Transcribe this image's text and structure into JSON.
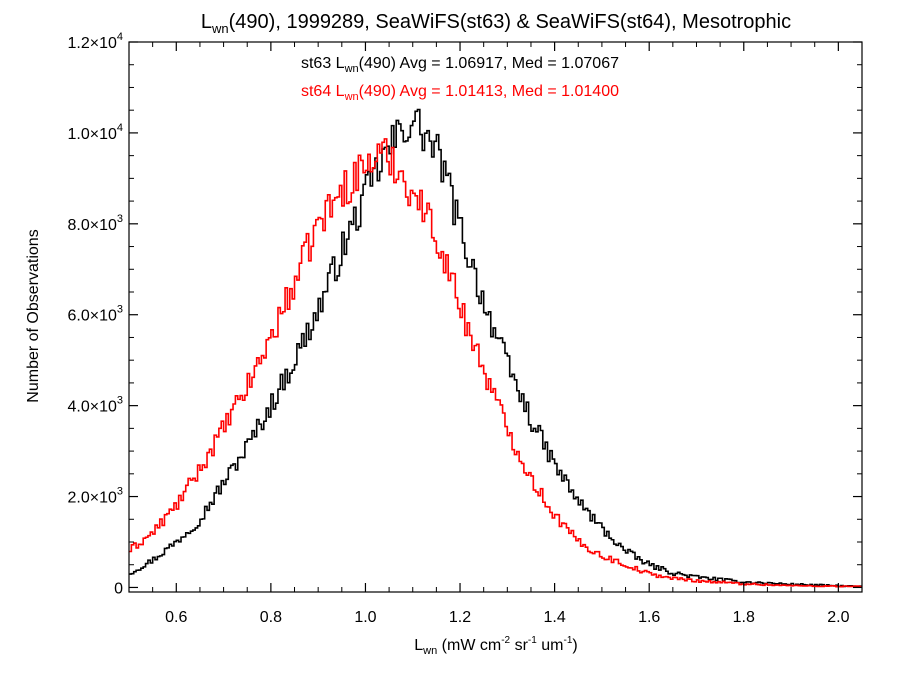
{
  "chart_data": {
    "type": "line",
    "step": true,
    "title": {
      "parts": [
        "L",
        "wn",
        "(490), 1999289, SeaWiFS(st63) & SeaWiFS(st64), Mesotrophic"
      ]
    },
    "xlabel": {
      "parts": [
        "L",
        "wn",
        " (mW cm",
        "-2",
        " sr",
        "-1",
        " um",
        "-1",
        ")"
      ]
    },
    "ylabel": "Number of Observations",
    "xlim": [
      0.5,
      2.05
    ],
    "ylim": [
      -100,
      12000
    ],
    "x_ticks": [
      0.6,
      0.8,
      1.0,
      1.2,
      1.4,
      1.6,
      1.8,
      2.0
    ],
    "x_tick_labels": [
      "0.6",
      "0.8",
      "1.0",
      "1.2",
      "1.4",
      "1.6",
      "1.8",
      "2.0"
    ],
    "y_ticks": [
      0,
      2000,
      4000,
      6000,
      8000,
      10000,
      12000
    ],
    "y_tick_labels": [
      {
        "mantissa": "0",
        "exp": ""
      },
      {
        "mantissa": "2.0×10",
        "exp": "3"
      },
      {
        "mantissa": "4.0×10",
        "exp": "3"
      },
      {
        "mantissa": "6.0×10",
        "exp": "3"
      },
      {
        "mantissa": "8.0×10",
        "exp": "3"
      },
      {
        "mantissa": "1.0×10",
        "exp": "4"
      },
      {
        "mantissa": "1.2×10",
        "exp": "4"
      }
    ],
    "grid": false,
    "annotations": [
      {
        "parts": [
          "st63 L",
          "wn",
          "(490) Avg = 1.06917, Med = 1.07067"
        ],
        "color": "#000000"
      },
      {
        "parts": [
          "st64 L",
          "wn",
          "(490) Avg = 1.01413, Med = 1.01400"
        ],
        "color": "#ff0000"
      }
    ],
    "series": [
      {
        "color": "#000000",
        "x": [
          0.5,
          0.55,
          0.6,
          0.65,
          0.7,
          0.75,
          0.8,
          0.85,
          0.9,
          0.95,
          1.0,
          1.03,
          1.06,
          1.08,
          1.1,
          1.13,
          1.16,
          1.2,
          1.25,
          1.3,
          1.35,
          1.4,
          1.45,
          1.5,
          1.55,
          1.6,
          1.65,
          1.7,
          1.8,
          1.9,
          2.05
        ],
        "y": [
          300,
          600,
          1000,
          1500,
          2300,
          3100,
          4000,
          5000,
          6100,
          7400,
          8600,
          9300,
          9800,
          10100,
          10300,
          9900,
          9400,
          7900,
          6300,
          4900,
          3700,
          2700,
          1900,
          1300,
          800,
          500,
          320,
          230,
          120,
          70,
          20
        ]
      },
      {
        "color": "#ff0000",
        "x": [
          0.5,
          0.55,
          0.6,
          0.65,
          0.7,
          0.75,
          0.8,
          0.85,
          0.9,
          0.95,
          1.0,
          1.03,
          1.06,
          1.08,
          1.1,
          1.13,
          1.16,
          1.2,
          1.25,
          1.3,
          1.35,
          1.4,
          1.45,
          1.5,
          1.55,
          1.6,
          1.65,
          1.7,
          1.8,
          1.9,
          2.05
        ],
        "y": [
          800,
          1200,
          1800,
          2600,
          3500,
          4400,
          5500,
          6700,
          8000,
          8700,
          9300,
          9500,
          9400,
          9000,
          8700,
          8200,
          7500,
          6200,
          4800,
          3500,
          2400,
          1600,
          1000,
          700,
          500,
          300,
          200,
          150,
          80,
          40,
          20
        ]
      }
    ]
  }
}
